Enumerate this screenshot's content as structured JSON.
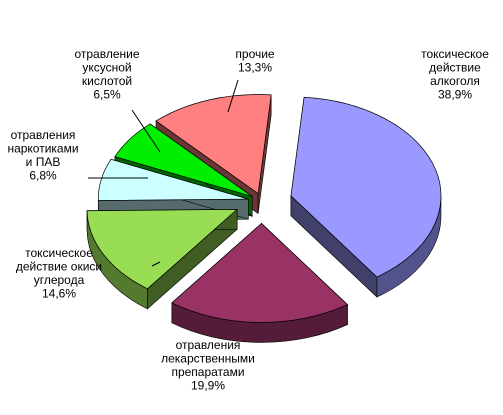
{
  "chart_data": {
    "type": "pie",
    "style": "3d-exploded",
    "legend": "none",
    "slices": [
      {
        "lines": [
          "токсическое",
          "действие",
          "алкоголя",
          "38,9%"
        ],
        "value": 38.9,
        "color": "#9999ff"
      },
      {
        "lines": [
          "отравления",
          "лекарственными",
          "препаратами",
          "19,9%"
        ],
        "value": 19.9,
        "color": "#993366"
      },
      {
        "lines": [
          "токсическое",
          "действие окиси",
          "углерода",
          "14,6%"
        ],
        "value": 14.6,
        "color": "#99dd55"
      },
      {
        "lines": [
          "отравления",
          "наркотиками",
          "и ПАВ",
          "6,8%"
        ],
        "value": 6.8,
        "color": "#ccffff"
      },
      {
        "lines": [
          "отравление",
          "уксусной",
          "кислотой",
          "6,5%"
        ],
        "value": 6.5,
        "color": "#00ee00"
      },
      {
        "lines": [
          "прочие",
          "13,3%"
        ],
        "value": 13.3,
        "color": "#ff8080"
      }
    ]
  }
}
